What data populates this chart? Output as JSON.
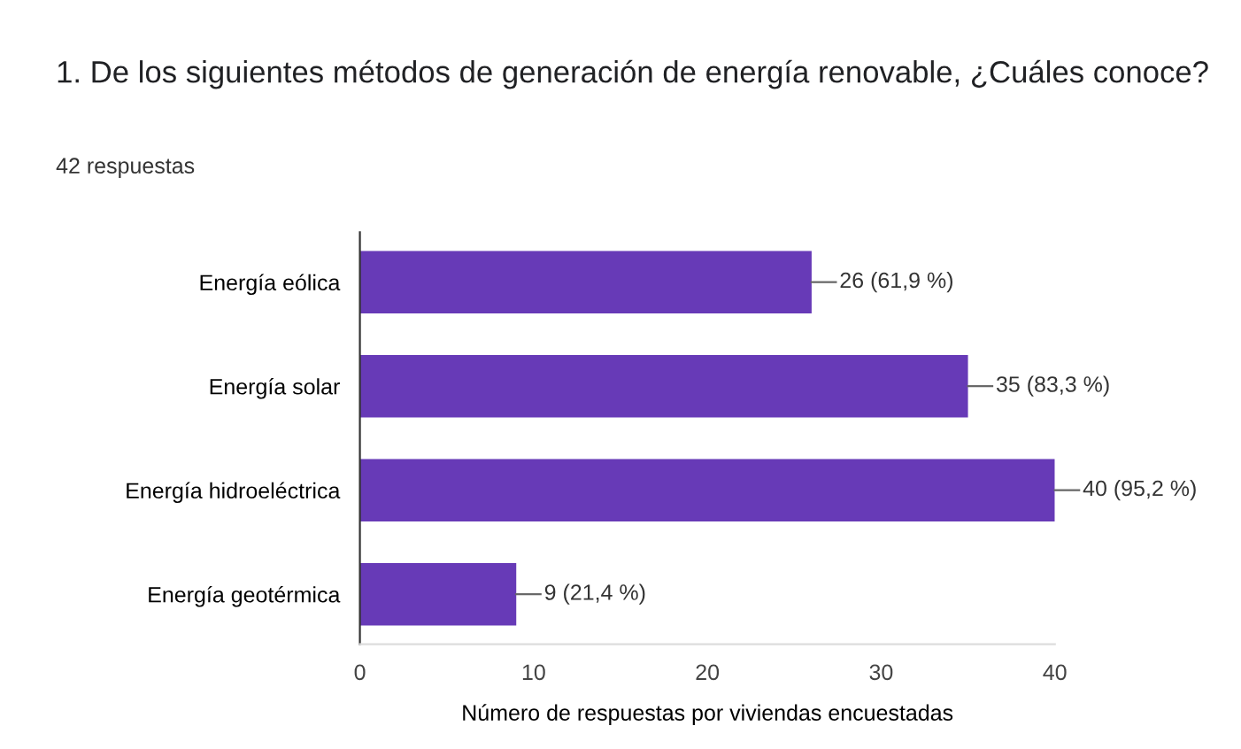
{
  "chart_data": {
    "type": "bar",
    "orientation": "horizontal",
    "title": "1. De los siguientes métodos de generación de energía renovable, ¿Cuáles conoce?",
    "subtitle": "42 respuestas",
    "xlabel": "Número de respuestas por viviendas encuestadas",
    "categories": [
      "Energía eólica",
      "Energía solar",
      "Energía hidroeléctrica",
      "Energía geotérmica"
    ],
    "values": [
      26,
      35,
      40,
      9
    ],
    "value_labels": [
      "26 (61,9 %)",
      "35 (83,3 %)",
      "40 (95,2 %)",
      "9 (21,4 %)"
    ],
    "color": "#673ab7",
    "xlim": [
      0,
      40
    ],
    "xticks": [
      0,
      10,
      20,
      30,
      40
    ],
    "grid": false,
    "legend": false
  }
}
